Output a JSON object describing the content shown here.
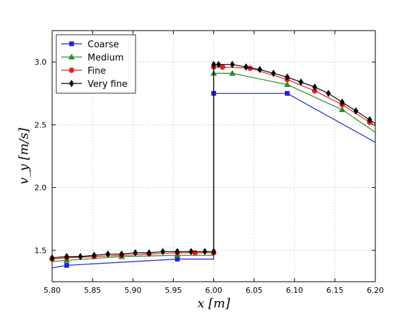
{
  "chart_data": {
    "type": "line",
    "title": "",
    "xlabel": "x [m]",
    "ylabel": "v_y [m/s]",
    "xlim": [
      5.8,
      6.2
    ],
    "ylim": [
      1.25,
      3.25
    ],
    "grid": true,
    "legend_position": "top-left",
    "x_ticks": [
      5.8,
      5.85,
      5.9,
      5.95,
      6.0,
      6.05,
      6.1,
      6.15,
      6.2
    ],
    "x_tick_labels": [
      "5.80",
      "5.85",
      "5.90",
      "5.95",
      "6.00",
      "6.05",
      "6.10",
      "6.15",
      "6.20"
    ],
    "y_ticks": [
      1.5,
      2.0,
      2.5,
      3.0
    ],
    "y_tick_labels": [
      "1.5",
      "2.0",
      "2.5",
      "3.0"
    ],
    "series": [
      {
        "name": "Coarse",
        "color": "#1f1fd8",
        "marker": "square",
        "x": [
          5.8,
          5.818,
          5.955,
          6.0,
          6.0,
          6.091,
          6.2
        ],
        "y": [
          1.36,
          1.38,
          1.43,
          1.43,
          2.75,
          2.75,
          2.36
        ],
        "marker_x": [
          5.818,
          5.955,
          6.0,
          6.091
        ],
        "marker_y": [
          1.38,
          1.43,
          2.75,
          2.75
        ]
      },
      {
        "name": "Medium",
        "color": "#2b8a2b",
        "marker": "triangle",
        "x": [
          5.8,
          5.818,
          5.886,
          5.955,
          6.0,
          6.0,
          6.023,
          6.091,
          6.159,
          6.2
        ],
        "y": [
          1.41,
          1.42,
          1.45,
          1.46,
          1.46,
          2.91,
          2.91,
          2.82,
          2.62,
          2.44
        ],
        "marker_x": [
          5.818,
          5.886,
          5.955,
          6.0,
          6.023,
          6.091,
          6.159
        ],
        "marker_y": [
          1.42,
          1.45,
          1.46,
          2.91,
          2.91,
          2.82,
          2.62
        ]
      },
      {
        "name": "Fine",
        "color": "#e81e1e",
        "marker": "circle",
        "x": [
          5.8,
          5.818,
          5.852,
          5.886,
          5.92,
          5.955,
          5.977,
          6.0,
          6.0,
          6.011,
          6.045,
          6.091,
          6.125,
          6.159,
          6.193,
          6.2
        ],
        "y": [
          1.43,
          1.44,
          1.45,
          1.46,
          1.47,
          1.48,
          1.48,
          1.48,
          2.96,
          2.96,
          2.95,
          2.86,
          2.77,
          2.66,
          2.52,
          2.49
        ],
        "marker_x": [
          5.8,
          5.818,
          5.852,
          5.886,
          5.92,
          5.955,
          5.977,
          6.0,
          6.0,
          6.011,
          6.045,
          6.091,
          6.125,
          6.159,
          6.193
        ],
        "marker_y": [
          1.43,
          1.44,
          1.45,
          1.46,
          1.47,
          1.48,
          1.48,
          1.48,
          2.96,
          2.96,
          2.95,
          2.86,
          2.77,
          2.66,
          2.52
        ]
      },
      {
        "name": "Very fine",
        "color": "#000000",
        "marker": "diamond",
        "x": [
          5.8,
          5.818,
          5.835,
          5.852,
          5.869,
          5.886,
          5.903,
          5.92,
          5.937,
          5.955,
          5.972,
          5.989,
          6.0,
          6.0,
          6.006,
          6.023,
          6.04,
          6.057,
          6.074,
          6.091,
          6.108,
          6.125,
          6.142,
          6.159,
          6.176,
          6.193,
          6.2
        ],
        "y": [
          1.44,
          1.45,
          1.45,
          1.46,
          1.47,
          1.47,
          1.48,
          1.48,
          1.49,
          1.49,
          1.49,
          1.49,
          1.49,
          2.98,
          2.98,
          2.98,
          2.96,
          2.94,
          2.91,
          2.88,
          2.84,
          2.8,
          2.75,
          2.68,
          2.61,
          2.54,
          2.51
        ],
        "marker_x": [
          5.8,
          5.818,
          5.835,
          5.852,
          5.869,
          5.886,
          5.903,
          5.92,
          5.937,
          5.955,
          5.972,
          5.989,
          6.0,
          6.0,
          6.006,
          6.023,
          6.04,
          6.057,
          6.074,
          6.091,
          6.108,
          6.125,
          6.142,
          6.159,
          6.176,
          6.193
        ],
        "marker_y": [
          1.44,
          1.45,
          1.45,
          1.46,
          1.47,
          1.47,
          1.48,
          1.48,
          1.49,
          1.49,
          1.49,
          1.49,
          1.49,
          2.98,
          2.98,
          2.98,
          2.96,
          2.94,
          2.91,
          2.88,
          2.84,
          2.8,
          2.75,
          2.68,
          2.61,
          2.54
        ]
      }
    ]
  }
}
